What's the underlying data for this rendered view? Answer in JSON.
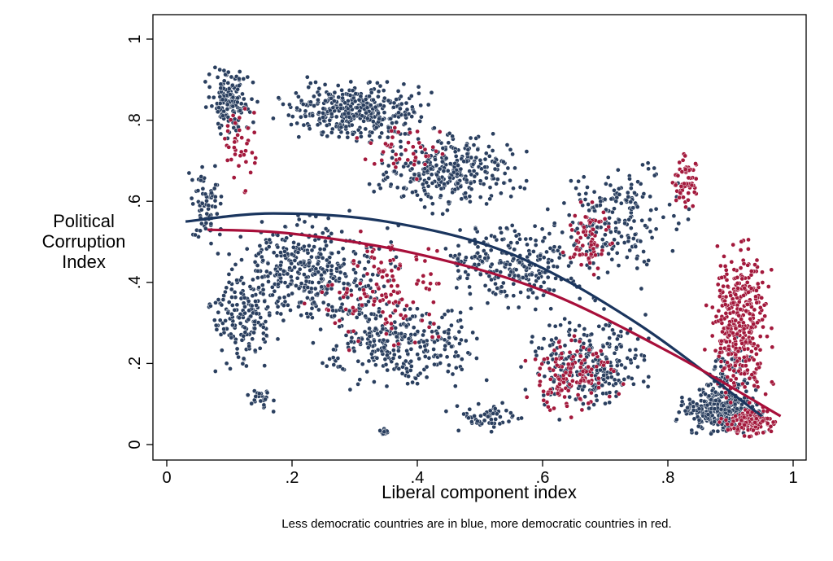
{
  "chart_data": {
    "type": "scatter",
    "title": "",
    "xlabel": "Liberal component index",
    "ylabel_lines": [
      "Political",
      "Corruption",
      "Index"
    ],
    "caption": "Less democratic countries are in blue, more democratic countries in red.",
    "xlim": [
      0,
      1
    ],
    "ylim": [
      0,
      1
    ],
    "x_ticks": [
      {
        "value": 0,
        "label": "0"
      },
      {
        "value": 0.2,
        "label": ".2"
      },
      {
        "value": 0.4,
        "label": ".4"
      },
      {
        "value": 0.6,
        "label": ".6"
      },
      {
        "value": 0.8,
        "label": ".8"
      },
      {
        "value": 1,
        "label": "1"
      }
    ],
    "y_ticks": [
      {
        "value": 0,
        "label": "0"
      },
      {
        "value": 0.2,
        "label": ".2"
      },
      {
        "value": 0.4,
        "label": ".4"
      },
      {
        "value": 0.6,
        "label": ".6"
      },
      {
        "value": 0.8,
        "label": ".8"
      },
      {
        "value": 1,
        "label": "1"
      }
    ],
    "grid": false,
    "colors": {
      "blue": "#2a3f5f",
      "red": "#a3193c",
      "blue_fit": "#1a355e",
      "red_fit": "#a80f3a"
    },
    "series": [
      {
        "name": "Less democratic",
        "color": "blue",
        "clusters": [
          {
            "x": [
              0.05,
              0.15
            ],
            "y": [
              0.75,
              0.95
            ],
            "n": 150
          },
          {
            "x": [
              0.15,
              0.45
            ],
            "y": [
              0.72,
              0.92
            ],
            "n": 380
          },
          {
            "x": [
              0.3,
              0.6
            ],
            "y": [
              0.55,
              0.8
            ],
            "n": 320
          },
          {
            "x": [
              0.03,
              0.1
            ],
            "y": [
              0.45,
              0.72
            ],
            "n": 70
          },
          {
            "x": [
              0.05,
              0.4
            ],
            "y": [
              0.25,
              0.6
            ],
            "n": 420
          },
          {
            "x": [
              0.05,
              0.2
            ],
            "y": [
              0.15,
              0.45
            ],
            "n": 140
          },
          {
            "x": [
              0.2,
              0.55
            ],
            "y": [
              0.1,
              0.4
            ],
            "n": 300
          },
          {
            "x": [
              0.4,
              0.7
            ],
            "y": [
              0.3,
              0.6
            ],
            "n": 260
          },
          {
            "x": [
              0.55,
              0.8
            ],
            "y": [
              0.05,
              0.35
            ],
            "n": 260
          },
          {
            "x": [
              0.6,
              0.85
            ],
            "y": [
              0.35,
              0.75
            ],
            "n": 200
          },
          {
            "x": [
              0.8,
              0.98
            ],
            "y": [
              0.01,
              0.15
            ],
            "n": 320
          },
          {
            "x": [
              0.85,
              0.95
            ],
            "y": [
              0.05,
              0.3
            ],
            "n": 90
          },
          {
            "x": [
              0.44,
              0.58
            ],
            "y": [
              0.02,
              0.12
            ],
            "n": 60
          },
          {
            "x": [
              0.33,
              0.36
            ],
            "y": [
              0.02,
              0.04
            ],
            "n": 20
          },
          {
            "x": [
              0.12,
              0.18
            ],
            "y": [
              0.07,
              0.15
            ],
            "n": 25
          }
        ],
        "fit": {
          "type": "quadratic",
          "x": [
            0.03,
            0.17,
            0.35,
            0.55,
            0.75,
            0.95
          ],
          "y": [
            0.55,
            0.57,
            0.55,
            0.47,
            0.3,
            0.07
          ]
        }
      },
      {
        "name": "More democratic",
        "color": "red",
        "clusters": [
          {
            "x": [
              0.85,
              0.98
            ],
            "y": [
              0.05,
              0.55
            ],
            "n": 360
          },
          {
            "x": [
              0.8,
              0.86
            ],
            "y": [
              0.55,
              0.75
            ],
            "n": 60
          },
          {
            "x": [
              0.62,
              0.72
            ],
            "y": [
              0.4,
              0.62
            ],
            "n": 70
          },
          {
            "x": [
              0.55,
              0.75
            ],
            "y": [
              0.05,
              0.3
            ],
            "n": 140
          },
          {
            "x": [
              0.2,
              0.5
            ],
            "y": [
              0.2,
              0.55
            ],
            "n": 130
          },
          {
            "x": [
              0.08,
              0.15
            ],
            "y": [
              0.6,
              0.88
            ],
            "n": 40
          },
          {
            "x": [
              0.28,
              0.48
            ],
            "y": [
              0.65,
              0.8
            ],
            "n": 40
          },
          {
            "x": [
              0.88,
              0.98
            ],
            "y": [
              0.01,
              0.1
            ],
            "n": 140
          }
        ],
        "fit": {
          "type": "quadratic",
          "x": [
            0.065,
            0.2,
            0.4,
            0.6,
            0.8,
            0.98
          ],
          "y": [
            0.53,
            0.52,
            0.47,
            0.38,
            0.23,
            0.07
          ]
        }
      }
    ]
  }
}
